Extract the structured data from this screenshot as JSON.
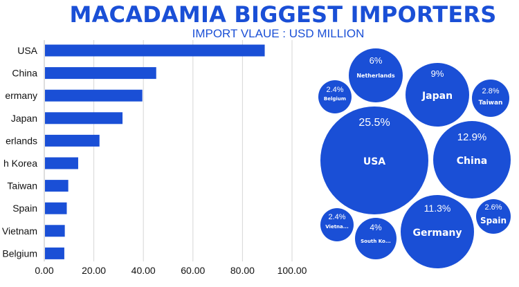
{
  "chart_data": [
    {
      "type": "bar",
      "orientation": "horizontal",
      "title": "MACADAMIA BIGGEST IMPORTERS",
      "subtitle": "IMPORT VLAUE : USD MILLION",
      "categories": [
        "USA",
        "China",
        "Germany",
        "Japan",
        "Netherlands",
        "South Korea",
        "Taiwan",
        "Spain",
        "Vietnam",
        "Belgium"
      ],
      "category_labels_visible": [
        "USA",
        "China",
        "ermany",
        "Japan",
        "erlands",
        "h Korea",
        "Taiwan",
        "Spain",
        "Vietnam",
        "Belgium"
      ],
      "values": [
        88.7,
        44.9,
        39.3,
        31.3,
        22.0,
        13.4,
        9.4,
        8.8,
        8.0,
        7.8
      ],
      "xlim": [
        0,
        100
      ],
      "x_ticks": [
        "0.00",
        "20.00",
        "40.00",
        "60.00",
        "80.00",
        "100.00"
      ],
      "grid": "vertical",
      "color": "#1a4fd6"
    },
    {
      "type": "bubble",
      "color": "#1a4fd6",
      "bubbles": [
        {
          "label": "USA",
          "value": "25.5%"
        },
        {
          "label": "China",
          "value": "12.9%"
        },
        {
          "label": "Germany",
          "value": "11.3%"
        },
        {
          "label": "Japan",
          "value": "9%"
        },
        {
          "label": "Netherlands",
          "value": "6%"
        },
        {
          "label": "South Ko...",
          "value": "4%"
        },
        {
          "label": "Taiwan",
          "value": "2.8%"
        },
        {
          "label": "Spain",
          "value": "2.6%"
        },
        {
          "label": "Belgium",
          "value": "2.4%"
        },
        {
          "label": "Vietna...",
          "value": "2.4%"
        }
      ]
    }
  ]
}
